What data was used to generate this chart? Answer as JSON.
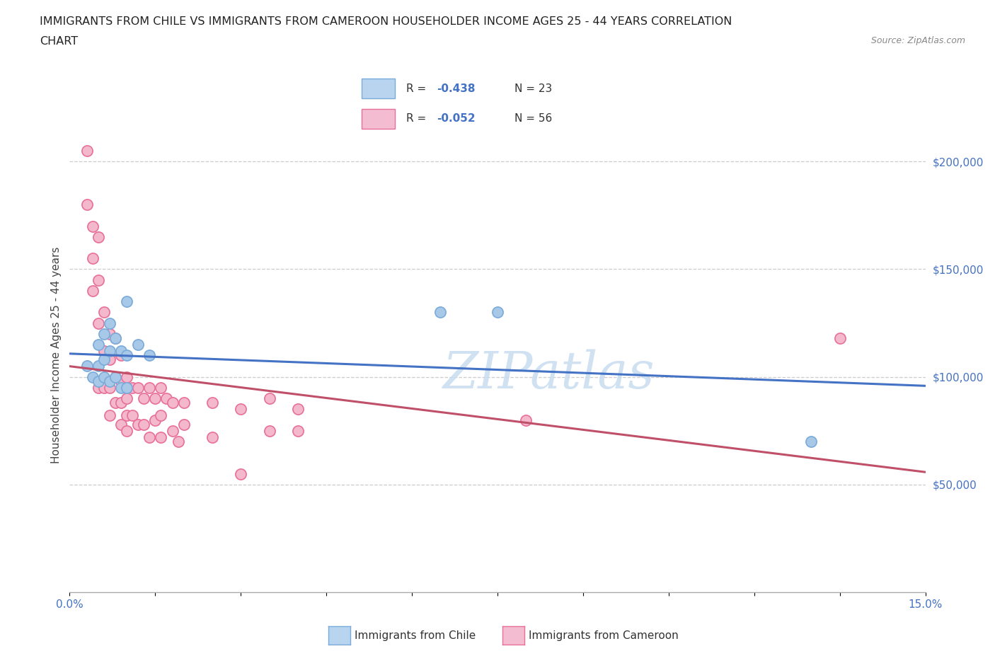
{
  "title_line1": "IMMIGRANTS FROM CHILE VS IMMIGRANTS FROM CAMEROON HOUSEHOLDER INCOME AGES 25 - 44 YEARS CORRELATION",
  "title_line2": "CHART",
  "source_text": "Source: ZipAtlas.com",
  "ylabel": "Householder Income Ages 25 - 44 years",
  "xlim": [
    0.0,
    0.15
  ],
  "ylim": [
    0,
    220000
  ],
  "yticks": [
    50000,
    100000,
    150000,
    200000
  ],
  "ytick_labels": [
    "$50,000",
    "$100,000",
    "$150,000",
    "$200,000"
  ],
  "xticks": [
    0.0,
    0.015,
    0.03,
    0.045,
    0.06,
    0.075,
    0.09,
    0.105,
    0.12,
    0.135,
    0.15
  ],
  "xtick_labels": [
    "0.0%",
    "",
    "",
    "",
    "",
    "",
    "",
    "",
    "",
    "",
    "15.0%"
  ],
  "chile_color": "#a8c8e8",
  "cameroon_color": "#f4b8cc",
  "chile_edge_color": "#7aabda",
  "cameroon_edge_color": "#e87098",
  "chile_line_color": "#4472c4",
  "cameroon_line_color": "#c0506a",
  "legend_box_chile_fill": "#b8d4ee",
  "legend_box_cam_fill": "#f4bcd0",
  "watermark_color": "#d8e8f4",
  "chile_x": [
    0.003,
    0.004,
    0.005,
    0.005,
    0.005,
    0.006,
    0.006,
    0.006,
    0.007,
    0.007,
    0.007,
    0.008,
    0.008,
    0.009,
    0.009,
    0.01,
    0.01,
    0.01,
    0.012,
    0.014,
    0.065,
    0.075,
    0.13
  ],
  "chile_y": [
    105000,
    100000,
    115000,
    105000,
    98000,
    120000,
    108000,
    100000,
    125000,
    112000,
    98000,
    118000,
    100000,
    112000,
    95000,
    135000,
    110000,
    95000,
    115000,
    110000,
    130000,
    130000,
    70000
  ],
  "cameroon_x": [
    0.003,
    0.003,
    0.004,
    0.004,
    0.004,
    0.005,
    0.005,
    0.005,
    0.005,
    0.006,
    0.006,
    0.006,
    0.007,
    0.007,
    0.007,
    0.007,
    0.008,
    0.008,
    0.008,
    0.009,
    0.009,
    0.009,
    0.009,
    0.01,
    0.01,
    0.01,
    0.01,
    0.011,
    0.011,
    0.012,
    0.012,
    0.013,
    0.013,
    0.014,
    0.014,
    0.015,
    0.015,
    0.016,
    0.016,
    0.016,
    0.017,
    0.018,
    0.018,
    0.019,
    0.02,
    0.02,
    0.025,
    0.025,
    0.03,
    0.03,
    0.035,
    0.035,
    0.04,
    0.04,
    0.08,
    0.135
  ],
  "cameroon_y": [
    205000,
    180000,
    170000,
    155000,
    140000,
    165000,
    145000,
    125000,
    95000,
    130000,
    112000,
    95000,
    120000,
    108000,
    95000,
    82000,
    118000,
    100000,
    88000,
    110000,
    98000,
    88000,
    78000,
    100000,
    90000,
    82000,
    75000,
    95000,
    82000,
    95000,
    78000,
    90000,
    78000,
    95000,
    72000,
    90000,
    80000,
    95000,
    82000,
    72000,
    90000,
    88000,
    75000,
    70000,
    88000,
    78000,
    88000,
    72000,
    55000,
    85000,
    90000,
    75000,
    85000,
    75000,
    80000,
    118000
  ],
  "bottom_legend_chile": "Immigrants from Chile",
  "bottom_legend_cam": "Immigrants from Cameroon"
}
